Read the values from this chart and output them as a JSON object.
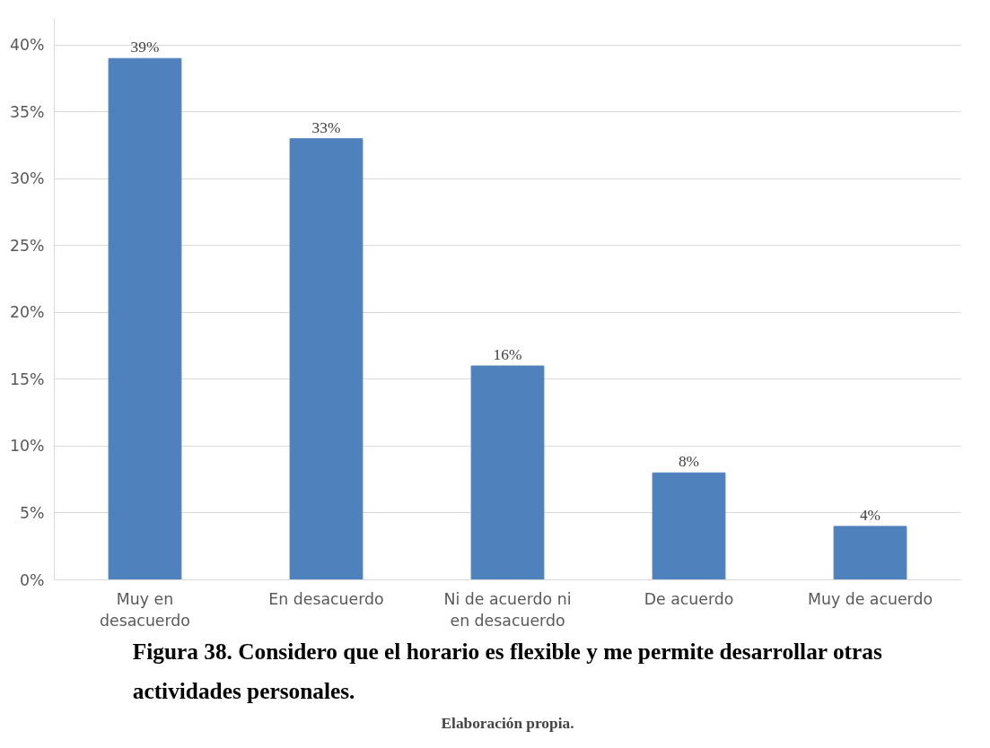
{
  "chart_data": {
    "type": "bar",
    "title": "Figura 38. Considero que el horario es flexible y me permite desarrollar otras actividades personales.",
    "annotations": [
      "Elaboración propia."
    ],
    "categories": [
      "Muy en desacuerdo",
      "En desacuerdo",
      "Ni de acuerdo ni en desacuerdo",
      "De acuerdo",
      "Muy de acuerdo"
    ],
    "values": [
      39,
      33,
      16,
      8,
      4
    ],
    "value_labels": [
      "39%",
      "33%",
      "16%",
      "8%",
      "4%"
    ],
    "color": "#4f81bd",
    "ylim": [
      0,
      42
    ],
    "yticks": [
      {
        "value": 0,
        "label": "0%"
      },
      {
        "value": 5,
        "label": "5%"
      },
      {
        "value": 10,
        "label": "10%"
      },
      {
        "value": 15,
        "label": "15%"
      },
      {
        "value": 20,
        "label": "20%"
      },
      {
        "value": 25,
        "label": "25%"
      },
      {
        "value": 30,
        "label": "30%"
      },
      {
        "value": 35,
        "label": "35%"
      },
      {
        "value": 40,
        "label": "40%"
      }
    ],
    "grid": "y"
  }
}
